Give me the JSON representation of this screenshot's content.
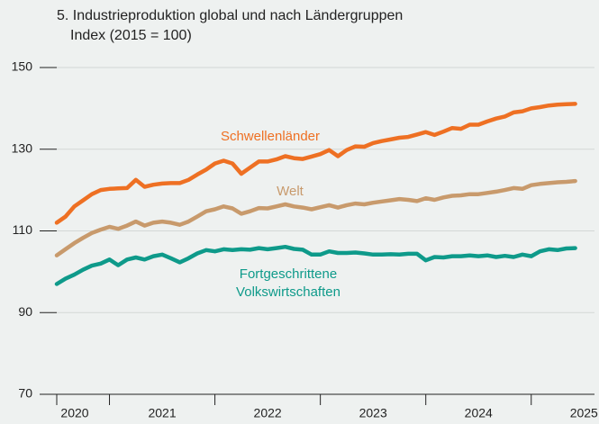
{
  "chart_data": {
    "type": "line",
    "title": "5. Industrieproduktion global und nach Ländergruppen",
    "subtitle": "Index (2015 = 100)",
    "x": [
      2020,
      2020.083,
      2020.167,
      2020.25,
      2020.333,
      2020.417,
      2020.5,
      2020.583,
      2020.667,
      2020.75,
      2020.833,
      2020.917,
      2021,
      2021.083,
      2021.167,
      2021.25,
      2021.333,
      2021.417,
      2021.5,
      2021.583,
      2021.667,
      2021.75,
      2021.833,
      2021.917,
      2022,
      2022.083,
      2022.167,
      2022.25,
      2022.333,
      2022.417,
      2022.5,
      2022.583,
      2022.667,
      2022.75,
      2022.833,
      2022.917,
      2023,
      2023.083,
      2023.167,
      2023.25,
      2023.333,
      2023.417,
      2023.5,
      2023.583,
      2023.667,
      2023.75,
      2023.833,
      2023.917,
      2024,
      2024.083,
      2024.167,
      2024.25,
      2024.333,
      2024.417,
      2024.5,
      2024.583,
      2024.667,
      2024.75,
      2024.833,
      2024.917
    ],
    "series": [
      {
        "name": "Schwellenländer",
        "color": "#ee7023",
        "values": [
          112,
          113.5,
          116,
          117.5,
          119,
          120,
          120.3,
          120.4,
          120.5,
          122.5,
          120.8,
          121.3,
          121.6,
          121.7,
          121.7,
          122.5,
          123.8,
          125,
          126.5,
          127.2,
          126.5,
          124,
          125.5,
          127,
          127,
          127.5,
          128.3,
          127.8,
          127.6,
          128.2,
          128.8,
          129.8,
          128.3,
          129.8,
          130.7,
          130.6,
          131.5,
          132,
          132.4,
          132.8,
          133,
          133.6,
          134.2,
          133.5,
          134.3,
          135.2,
          135,
          136,
          136,
          136.8,
          137.5,
          138,
          139,
          139.3,
          140,
          140.3,
          140.7,
          140.9,
          141,
          141.1
        ]
      },
      {
        "name": "Welt",
        "color": "#c89a6c",
        "values": [
          104,
          105.5,
          107,
          108.3,
          109.5,
          110.3,
          111,
          110.5,
          111.3,
          112.3,
          111.3,
          112,
          112.3,
          112,
          111.5,
          112.3,
          113.5,
          114.8,
          115.3,
          116,
          115.5,
          114.2,
          114.8,
          115.6,
          115.5,
          116,
          116.5,
          116,
          115.7,
          115.3,
          115.8,
          116.3,
          115.7,
          116.3,
          116.7,
          116.5,
          116.9,
          117.2,
          117.5,
          117.8,
          117.6,
          117.3,
          118,
          117.6,
          118.2,
          118.6,
          118.7,
          119,
          119,
          119.3,
          119.6,
          120,
          120.5,
          120.3,
          121.2,
          121.5,
          121.7,
          121.9,
          122,
          122.2
        ]
      },
      {
        "name": "Fortgeschrittene Volkswirtschaften",
        "color": "#0e9a8a",
        "values": [
          97,
          98.3,
          99.3,
          100.5,
          101.5,
          102,
          103,
          101.6,
          103,
          103.5,
          103,
          103.8,
          104.2,
          103.3,
          102.3,
          103.3,
          104.5,
          105.3,
          105,
          105.5,
          105.3,
          105.5,
          105.4,
          105.8,
          105.5,
          105.8,
          106.1,
          105.6,
          105.4,
          104.2,
          104.2,
          105,
          104.6,
          104.6,
          104.7,
          104.5,
          104.2,
          104.2,
          104.3,
          104.2,
          104.4,
          104.4,
          102.8,
          103.6,
          103.5,
          103.8,
          103.8,
          104,
          103.8,
          104,
          103.6,
          103.9,
          103.6,
          104.2,
          103.8,
          105,
          105.5,
          105.3,
          105.7,
          105.8
        ]
      }
    ],
    "xlim": [
      2020,
      2025.1
    ],
    "xticks": [
      2020,
      2021,
      2022,
      2023,
      2024,
      2025
    ],
    "ylim": [
      70,
      150
    ],
    "yticks": [
      70,
      90,
      110,
      130,
      150
    ],
    "grid": true
  }
}
